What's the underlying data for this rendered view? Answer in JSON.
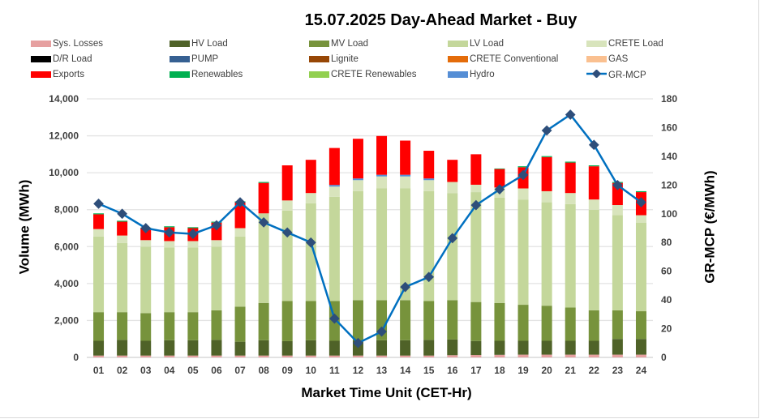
{
  "chart_data": {
    "type": "bar",
    "title": "15.07.2025  Day-Ahead Market - Buy",
    "xlabel": "Market Time Unit (CET-Hr)",
    "ylabel": "Volume (MWh)",
    "y2label": "GR-MCP (€/MWh)",
    "ylim": [
      0,
      14000
    ],
    "y2lim": [
      0,
      180
    ],
    "yticks": [
      "0",
      "2,000",
      "4,000",
      "6,000",
      "8,000",
      "10,000",
      "12,000",
      "14,000"
    ],
    "y2ticks": [
      "0",
      "20",
      "40",
      "60",
      "80",
      "100",
      "120",
      "140",
      "160",
      "180"
    ],
    "grid": true,
    "legend_placement": "top",
    "categories": [
      "01",
      "02",
      "03",
      "04",
      "05",
      "06",
      "07",
      "08",
      "09",
      "10",
      "11",
      "12",
      "13",
      "14",
      "15",
      "16",
      "17",
      "18",
      "19",
      "20",
      "21",
      "22",
      "23",
      "24"
    ],
    "series": [
      {
        "name": "Sys. Losses",
        "color": "#e6a0a0",
        "values": [
          100,
          100,
          100,
          100,
          100,
          100,
          100,
          100,
          100,
          100,
          100,
          100,
          100,
          100,
          100,
          120,
          130,
          140,
          150,
          150,
          150,
          150,
          150,
          150
        ]
      },
      {
        "name": "HV Load",
        "color": "#4f6228",
        "values": [
          800,
          850,
          800,
          830,
          830,
          850,
          750,
          830,
          780,
          830,
          800,
          820,
          830,
          830,
          850,
          850,
          760,
          760,
          750,
          750,
          750,
          750,
          850,
          850
        ]
      },
      {
        "name": "MV Load",
        "color": "#77933c",
        "values": [
          1550,
          1500,
          1500,
          1520,
          1520,
          1600,
          1900,
          2020,
          2170,
          2120,
          2150,
          2180,
          2170,
          2170,
          2100,
          2130,
          2110,
          2050,
          1950,
          1900,
          1800,
          1650,
          1550,
          1500
        ]
      },
      {
        "name": "LV Load",
        "color": "#c4d79b",
        "values": [
          4100,
          3750,
          3600,
          3500,
          3500,
          3450,
          3800,
          4850,
          4900,
          5300,
          5650,
          5900,
          6050,
          6050,
          5950,
          5800,
          5950,
          5700,
          5700,
          5600,
          5600,
          5450,
          5150,
          4800
        ]
      },
      {
        "name": "CRETE Load",
        "color": "#d8e4bc",
        "values": [
          400,
          400,
          350,
          350,
          350,
          350,
          450,
          0,
          550,
          550,
          550,
          600,
          650,
          650,
          600,
          600,
          400,
          550,
          600,
          600,
          600,
          550,
          550,
          400
        ]
      },
      {
        "name": "D/R Load",
        "color": "#000000",
        "values": [
          0,
          0,
          0,
          0,
          0,
          0,
          0,
          0,
          0,
          0,
          0,
          0,
          0,
          0,
          0,
          0,
          0,
          0,
          0,
          0,
          0,
          0,
          0,
          0
        ]
      },
      {
        "name": "PUMP",
        "color": "#366092",
        "values": [
          0,
          0,
          0,
          0,
          0,
          0,
          0,
          0,
          0,
          0,
          0,
          0,
          0,
          0,
          0,
          0,
          0,
          0,
          0,
          0,
          0,
          0,
          0,
          0
        ]
      },
      {
        "name": "Lignite",
        "color": "#974706",
        "values": [
          0,
          0,
          0,
          0,
          0,
          0,
          0,
          0,
          0,
          0,
          0,
          0,
          0,
          0,
          0,
          0,
          0,
          0,
          0,
          0,
          0,
          0,
          0,
          0
        ]
      },
      {
        "name": "CRETE Conventional",
        "color": "#e46c0a",
        "values": [
          0,
          0,
          0,
          0,
          0,
          0,
          0,
          0,
          0,
          0,
          0,
          0,
          0,
          0,
          0,
          0,
          0,
          0,
          0,
          0,
          0,
          0,
          0,
          0
        ]
      },
      {
        "name": "GAS",
        "color": "#fac090",
        "values": [
          0,
          0,
          0,
          0,
          0,
          0,
          0,
          0,
          0,
          0,
          0,
          0,
          0,
          0,
          0,
          0,
          0,
          0,
          0,
          0,
          0,
          0,
          0,
          0
        ]
      },
      {
        "name": "Hydro",
        "color": "#558ed5",
        "values": [
          0,
          0,
          0,
          0,
          0,
          0,
          0,
          0,
          0,
          0,
          90,
          90,
          90,
          90,
          90,
          0,
          0,
          0,
          0,
          0,
          0,
          0,
          0,
          0
        ]
      },
      {
        "name": "Exports",
        "color": "#ff0000",
        "values": [
          800,
          750,
          650,
          750,
          700,
          950,
          1400,
          1650,
          1900,
          1800,
          2000,
          2150,
          2100,
          1850,
          1500,
          1200,
          1650,
          1000,
          1150,
          1850,
          1650,
          1800,
          1200,
          1250
        ]
      },
      {
        "name": "Renewables",
        "color": "#00b050",
        "values": [
          50,
          50,
          30,
          50,
          50,
          50,
          50,
          50,
          0,
          0,
          0,
          0,
          0,
          0,
          0,
          0,
          0,
          30,
          50,
          50,
          50,
          50,
          50,
          50
        ]
      },
      {
        "name": "CRETE Renewables",
        "color": "#92d050",
        "values": [
          0,
          0,
          0,
          0,
          0,
          0,
          0,
          0,
          0,
          0,
          0,
          0,
          0,
          0,
          0,
          0,
          0,
          0,
          0,
          0,
          0,
          0,
          0,
          0
        ]
      }
    ],
    "line": {
      "name": "GR-MCP",
      "color": "#0070c0",
      "marker_color": "#2e4e7a",
      "values": [
        107,
        100,
        90,
        87,
        86,
        92,
        108,
        94,
        87,
        80,
        27,
        10,
        18,
        49,
        56,
        83,
        106,
        117,
        127,
        158,
        169,
        148,
        120,
        108
      ]
    }
  },
  "legend": [
    {
      "label": "Sys. Losses",
      "color": "#e6a0a0"
    },
    {
      "label": "HV Load",
      "color": "#4f6228"
    },
    {
      "label": "MV Load",
      "color": "#77933c"
    },
    {
      "label": "LV Load",
      "color": "#c4d79b"
    },
    {
      "label": "CRETE Load",
      "color": "#d8e4bc"
    },
    {
      "label": "D/R Load",
      "color": "#000000"
    },
    {
      "label": "PUMP",
      "color": "#366092"
    },
    {
      "label": "Lignite",
      "color": "#974706"
    },
    {
      "label": "CRETE Conventional",
      "color": "#e46c0a"
    },
    {
      "label": "GAS",
      "color": "#fac090"
    },
    {
      "label": "Exports",
      "color": "#ff0000"
    },
    {
      "label": "Renewables",
      "color": "#00b050"
    },
    {
      "label": "CRETE Renewables",
      "color": "#92d050"
    },
    {
      "label": "Hydro",
      "color": "#558ed5"
    },
    {
      "label": "GR-MCP",
      "color": "#0070c0"
    }
  ]
}
